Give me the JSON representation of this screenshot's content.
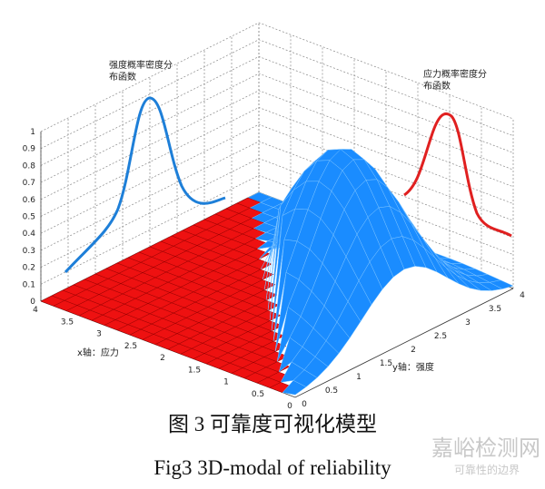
{
  "figure": {
    "zticks": [
      "0",
      "0.1",
      "0.2",
      "0.3",
      "0.4",
      "0.5",
      "0.6",
      "0.7",
      "0.8",
      "0.9",
      "1"
    ],
    "xticks": [
      "4",
      "3.5",
      "3",
      "2.5",
      "2",
      "1.5",
      "1",
      "0.5",
      "0"
    ],
    "yticks": [
      "0",
      "0.5",
      "1",
      "1.5",
      "2",
      "2.5",
      "3",
      "3.5",
      "4"
    ],
    "x_label": "x轴：应力",
    "y_label": "y轴：强度",
    "strength_note": [
      "强度概率密度分",
      "布函数"
    ],
    "stress_note": [
      "应力概率密度分",
      "布函数"
    ],
    "caption_cn": "图 3  可靠度可视化模型",
    "caption_en": "Fig3    3D-modal of reliability",
    "watermark": [
      "嘉峪检测网",
      "可靠性的边界"
    ]
  }
}
